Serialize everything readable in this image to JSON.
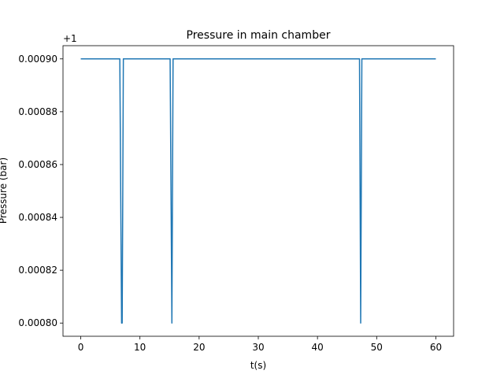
{
  "chart_data": {
    "type": "line",
    "title": "Pressure in main chamber",
    "xlabel": "t(s)",
    "ylabel": "Pressure (bar)",
    "offset_label": "+1",
    "xlim": [
      -3,
      63
    ],
    "ylim": [
      0.000795,
      0.000905
    ],
    "x_ticks": [
      0,
      10,
      20,
      30,
      40,
      50,
      60
    ],
    "y_ticks": [
      0.0008,
      0.00082,
      0.00084,
      0.00086,
      0.00088,
      0.0009
    ],
    "x_tick_labels": [
      "0",
      "10",
      "20",
      "30",
      "40",
      "50",
      "60"
    ],
    "y_tick_labels": [
      "0.00080",
      "0.00082",
      "0.00084",
      "0.00086",
      "0.00088",
      "0.00090"
    ],
    "grid": false,
    "series": [
      {
        "color": "#1f77b4",
        "x": [
          0,
          6.6,
          6.9,
          7.0,
          7.2,
          15.1,
          15.4,
          15.6,
          47.1,
          47.3,
          47.5,
          60
        ],
        "y": [
          0.0009,
          0.0009,
          0.0008,
          0.0008,
          0.0009,
          0.0009,
          0.0008,
          0.0009,
          0.0009,
          0.0008,
          0.0009,
          0.0009
        ]
      }
    ]
  }
}
